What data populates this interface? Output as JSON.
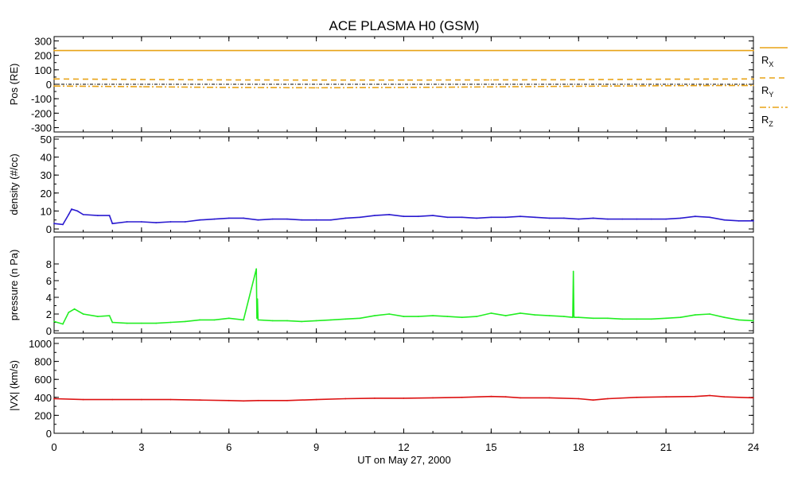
{
  "title": "ACE PLASMA H0 (GSM)",
  "x_axis": {
    "label": "UT on May 27, 2000",
    "range": [
      0,
      24
    ],
    "ticks": [
      "0",
      "3",
      "6",
      "9",
      "12",
      "15",
      "18",
      "21",
      "24"
    ]
  },
  "chart_data": [
    {
      "type": "line",
      "ylabel": "Pos (RE)",
      "ylim": [
        -330,
        330
      ],
      "yticks": [
        "300",
        "200",
        "100",
        "0",
        "-100",
        "-200",
        "-300"
      ],
      "zero_line": true,
      "legend_placement": "right",
      "series": [
        {
          "name": "RX",
          "color": "#e8a317",
          "style": "solid",
          "x": [
            0,
            24
          ],
          "y": [
            233,
            233
          ]
        },
        {
          "name": "RY",
          "color": "#e8a317",
          "style": "dashed",
          "x": [
            0,
            3,
            6,
            9,
            12,
            15,
            18,
            21,
            24
          ],
          "y": [
            37,
            33,
            30,
            29,
            29,
            30,
            32,
            35,
            37
          ]
        },
        {
          "name": "RZ",
          "color": "#e8a317",
          "style": "dashdot",
          "x": [
            0,
            3,
            6,
            9,
            12,
            15,
            18,
            21,
            24
          ],
          "y": [
            -12,
            -17,
            -22,
            -24,
            -22,
            -18,
            -14,
            -10,
            -8
          ]
        }
      ]
    },
    {
      "type": "line",
      "ylabel": "density (#/cc)",
      "ylim": [
        0,
        50
      ],
      "yticks": [
        "50",
        "40",
        "30",
        "20",
        "10",
        "0"
      ],
      "series": [
        {
          "color": "#2a1ad0",
          "x": [
            0,
            0.3,
            0.5,
            0.6,
            0.8,
            1.0,
            1.5,
            1.9,
            2.0,
            2.5,
            3.0,
            3.5,
            4.0,
            4.5,
            5.0,
            5.5,
            6.0,
            6.5,
            7.0,
            7.5,
            8.0,
            8.5,
            9.0,
            9.5,
            10.0,
            10.5,
            11.0,
            11.5,
            12.0,
            12.5,
            13.0,
            13.5,
            14.0,
            14.5,
            15.0,
            15.5,
            16.0,
            16.5,
            17.0,
            17.5,
            18.0,
            18.5,
            19.0,
            19.5,
            20.0,
            20.5,
            21.0,
            21.5,
            22.0,
            22.5,
            23.0,
            23.5,
            24.0
          ],
          "y": [
            3,
            2.5,
            8,
            11,
            10,
            8,
            7.5,
            7.5,
            3,
            4,
            4,
            3.5,
            4,
            4,
            5,
            5.5,
            6,
            6,
            5,
            5.5,
            5.5,
            5,
            5,
            5,
            6,
            6.5,
            7.5,
            8,
            7,
            7,
            7.5,
            6.5,
            6.5,
            6,
            6.5,
            6.5,
            7,
            6.5,
            6,
            6,
            5.5,
            6,
            5.5,
            5.5,
            5.5,
            5.5,
            5.5,
            6,
            7,
            6.5,
            5,
            4.5,
            4.5
          ]
        }
      ]
    },
    {
      "type": "line",
      "ylabel": "pressure (n Pa)",
      "ylim": [
        0,
        10
      ],
      "yticks": [
        "8",
        "6",
        "4",
        "2",
        "0"
      ],
      "series": [
        {
          "color": "#22ee22",
          "x": [
            0,
            0.3,
            0.5,
            0.7,
            1.0,
            1.5,
            1.9,
            2.0,
            2.5,
            3.0,
            3.5,
            4.0,
            4.5,
            5.0,
            5.5,
            6.0,
            6.5,
            6.94,
            6.96,
            6.98,
            7.0,
            7.5,
            8.0,
            8.5,
            9.0,
            9.5,
            10.0,
            10.5,
            11.0,
            11.5,
            12.0,
            12.5,
            13.0,
            13.5,
            14.0,
            14.5,
            15.0,
            15.5,
            16.0,
            16.5,
            17.0,
            17.5,
            17.8,
            17.82,
            17.84,
            17.86,
            18.0,
            18.5,
            19.0,
            19.5,
            20.0,
            20.5,
            21.0,
            21.5,
            22.0,
            22.5,
            23.0,
            23.5,
            24.0
          ],
          "y": [
            1.1,
            0.8,
            2.2,
            2.6,
            2.0,
            1.7,
            1.8,
            1.0,
            0.9,
            0.9,
            0.9,
            1.0,
            1.1,
            1.3,
            1.3,
            1.5,
            1.3,
            7.4,
            1.5,
            3.8,
            1.3,
            1.2,
            1.2,
            1.1,
            1.2,
            1.3,
            1.4,
            1.5,
            1.8,
            2.0,
            1.7,
            1.7,
            1.8,
            1.7,
            1.6,
            1.7,
            2.1,
            1.8,
            2.1,
            1.9,
            1.8,
            1.7,
            1.6,
            7.1,
            1.7,
            1.6,
            1.6,
            1.5,
            1.5,
            1.4,
            1.4,
            1.4,
            1.5,
            1.6,
            1.9,
            2.0,
            1.6,
            1.3,
            1.2
          ]
        }
      ]
    },
    {
      "type": "line",
      "ylabel": "|VX| (km/s)",
      "ylim": [
        0,
        1000
      ],
      "yticks": [
        "1000",
        "800",
        "600",
        "400",
        "200",
        "0"
      ],
      "series": [
        {
          "color": "#dd1111",
          "x": [
            0,
            1,
            2,
            3,
            4,
            5,
            6,
            6.5,
            7,
            8,
            9,
            10,
            11,
            12,
            13,
            14,
            15,
            15.5,
            16,
            17,
            18,
            18.5,
            19,
            20,
            21,
            22,
            22.5,
            23,
            24
          ],
          "y": [
            385,
            375,
            375,
            375,
            375,
            370,
            365,
            360,
            365,
            365,
            375,
            385,
            390,
            390,
            395,
            400,
            410,
            405,
            395,
            395,
            385,
            370,
            385,
            400,
            405,
            410,
            420,
            405,
            395
          ]
        }
      ]
    }
  ]
}
